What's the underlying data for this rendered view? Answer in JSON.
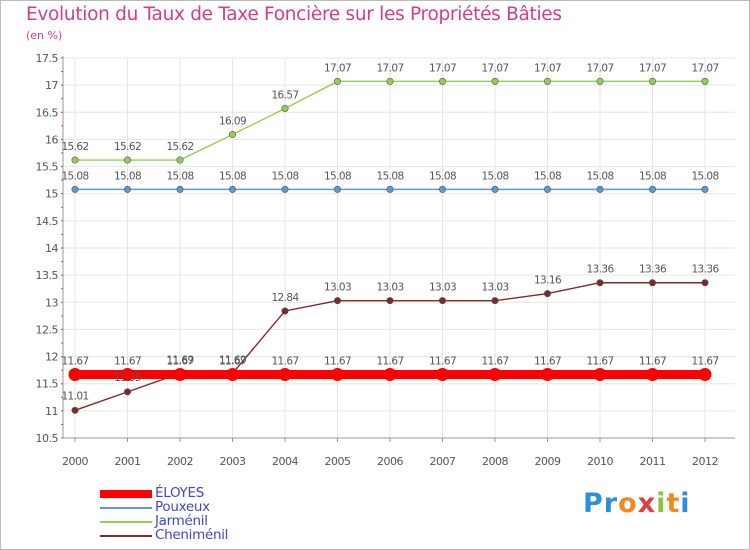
{
  "chart_data": {
    "type": "line",
    "title": "Evolution du Taux de Taxe Foncière sur les Propriétés Bâties",
    "ylabel": "(en %)",
    "xlabel": "",
    "ylim": [
      10.5,
      17.5
    ],
    "yticks": [
      "10.5",
      "11",
      "11.5",
      "12",
      "12.5",
      "13",
      "13.5",
      "14",
      "14.5",
      "15",
      "15.5",
      "16",
      "16.5",
      "17",
      "17.5"
    ],
    "categories": [
      "2000",
      "2001",
      "2002",
      "2003",
      "2004",
      "2005",
      "2006",
      "2007",
      "2008",
      "2009",
      "2010",
      "2011",
      "2012"
    ],
    "series": [
      {
        "name": "ÉLOYES",
        "color": "#ff0000",
        "values": [
          11.67,
          11.67,
          11.67,
          11.67,
          11.67,
          11.67,
          11.67,
          11.67,
          11.67,
          11.67,
          11.67,
          11.67,
          11.67
        ],
        "labels": [
          "11.67",
          "11.67",
          "11.67",
          "11.67",
          "11.67",
          "11.67",
          "11.67",
          "11.67",
          "11.67",
          "11.67",
          "11.67",
          "11.67",
          "11.67"
        ]
      },
      {
        "name": "Pouxeux",
        "color": "#5b9bd5",
        "values": [
          15.08,
          15.08,
          15.08,
          15.08,
          15.08,
          15.08,
          15.08,
          15.08,
          15.08,
          15.08,
          15.08,
          15.08,
          15.08
        ],
        "labels": [
          "15.08",
          "15.08",
          "15.08",
          "15.08",
          "15.08",
          "15.08",
          "15.08",
          "15.08",
          "15.08",
          "15.08",
          "15.08",
          "15.08",
          "15.08"
        ]
      },
      {
        "name": "Jarménil",
        "color": "#92d050",
        "values": [
          15.62,
          15.62,
          15.62,
          16.09,
          16.57,
          17.07,
          17.07,
          17.07,
          17.07,
          17.07,
          17.07,
          17.07,
          17.07
        ],
        "labels": [
          "15.62",
          "15.62",
          "15.62",
          "16.09",
          "16.57",
          "17.07",
          "17.07",
          "17.07",
          "17.07",
          "17.07",
          "17.07",
          "17.07",
          "17.07"
        ]
      },
      {
        "name": "Cheniménil",
        "color": "#7b2b2b",
        "values": [
          11.01,
          11.35,
          11.69,
          11.69,
          12.84,
          13.03,
          13.03,
          13.03,
          13.03,
          13.16,
          13.36,
          13.36,
          13.36
        ],
        "labels": [
          "11.01",
          "11.35",
          "11.69",
          "11.69",
          "12.84",
          "13.03",
          "13.03",
          "13.03",
          "13.03",
          "13.16",
          "13.36",
          "13.36",
          "13.36"
        ]
      }
    ],
    "legend_position": "bottom-left"
  },
  "logo": {
    "text": "Proxiti"
  }
}
